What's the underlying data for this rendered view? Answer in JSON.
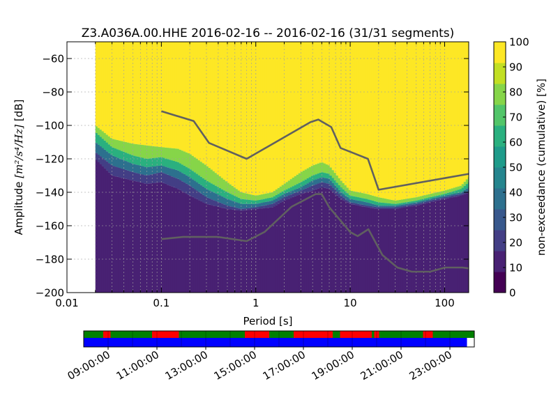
{
  "chart_data": {
    "type": "heatmap",
    "title": "Z3.A036A.00.HHE   2016-02-16 -- 2016-02-16  (31/31 segments)",
    "xlabel": "Period [s]",
    "ylabel_prefix": "Amplitude ",
    "ylabel_units": "[m²/s⁴/Hz]",
    "ylabel_suffix": " [dB]",
    "x_scale": "log",
    "xlim": [
      0.01,
      180
    ],
    "ylim": [
      -200,
      -50
    ],
    "grid": true,
    "x_ticks": [
      {
        "value": 0.01,
        "label": "0.01"
      },
      {
        "value": 0.1,
        "label": "0.1"
      },
      {
        "value": 1,
        "label": "1"
      },
      {
        "value": 10,
        "label": "10"
      },
      {
        "value": 100,
        "label": "100"
      }
    ],
    "y_ticks": [
      {
        "value": -60,
        "label": "−60"
      },
      {
        "value": -80,
        "label": "−80"
      },
      {
        "value": -100,
        "label": "−100"
      },
      {
        "value": -120,
        "label": "−120"
      },
      {
        "value": -140,
        "label": "−140"
      },
      {
        "value": -160,
        "label": "−160"
      },
      {
        "value": -180,
        "label": "−180"
      },
      {
        "value": -200,
        "label": "−200"
      }
    ],
    "data_period_range": [
      0.02,
      180
    ],
    "psd_band": {
      "periods": [
        0.02,
        0.03,
        0.05,
        0.07,
        0.1,
        0.15,
        0.2,
        0.3,
        0.5,
        0.7,
        1,
        1.5,
        2,
        3,
        4,
        5,
        6,
        8,
        10,
        15,
        20,
        30,
        50,
        70,
        100,
        150,
        180
      ],
      "p100": [
        -100,
        -108,
        -111,
        -112,
        -113,
        -114,
        -117,
        -124,
        -134,
        -140,
        -142,
        -140,
        -135,
        -128,
        -124,
        -122,
        -124,
        -133,
        -139,
        -141,
        -143,
        -145,
        -143,
        -141,
        -139,
        -136,
        -131
      ],
      "p90": [
        -104,
        -113,
        -118,
        -120,
        -119,
        -122,
        -126,
        -133,
        -140,
        -144,
        -145,
        -143,
        -139,
        -134,
        -130,
        -128,
        -129,
        -137,
        -142,
        -144,
        -146,
        -147,
        -145,
        -143,
        -141,
        -138,
        -134
      ],
      "p60": [
        -110,
        -118,
        -123,
        -125,
        -124,
        -127,
        -131,
        -138,
        -144,
        -147,
        -147,
        -145,
        -141,
        -137,
        -133,
        -131,
        -132,
        -140,
        -144,
        -146,
        -148,
        -148,
        -146,
        -144,
        -142,
        -140,
        -137
      ],
      "p20": [
        -116,
        -124,
        -128,
        -130,
        -128,
        -132,
        -136,
        -143,
        -148,
        -150,
        -149,
        -147,
        -143,
        -139,
        -136,
        -134,
        -135,
        -142,
        -146,
        -148,
        -149,
        -149,
        -147,
        -145,
        -143,
        -141,
        -139
      ],
      "p8": [
        -120,
        -130,
        -133,
        -135,
        -134,
        -138,
        -142,
        -147,
        -150,
        -151,
        -150,
        -149,
        -145,
        -141,
        -139,
        -137,
        -138,
        -144,
        -147,
        -149,
        -150,
        -150,
        -148,
        -146,
        -144,
        -142,
        -140
      ]
    },
    "nhnm": {
      "x": [
        0.1,
        0.22,
        0.32,
        0.8,
        3.8,
        4.6,
        6.3,
        7.9,
        15.4,
        20,
        180
      ],
      "y": [
        -91.5,
        -97.4,
        -110.5,
        -120,
        -98,
        -96.5,
        -101,
        -113.5,
        -120,
        -138.5,
        -129
      ]
    },
    "nlnm": {
      "x": [
        0.1,
        0.17,
        0.4,
        0.8,
        1.24,
        2.4,
        4.3,
        5,
        6,
        10,
        12,
        15.6,
        21.9,
        31.6,
        45,
        70,
        101,
        154,
        180
      ],
      "y": [
        -168,
        -166.7,
        -166.7,
        -169.2,
        -163.7,
        -148.6,
        -141.1,
        -141.1,
        -149,
        -163.8,
        -166.2,
        -162.1,
        -177.5,
        -185,
        -187.5,
        -187.5,
        -185,
        -185,
        -185.5
      ]
    },
    "colorbar": {
      "label": "non-exceedance (cumulative) [%]",
      "range": [
        0,
        100
      ],
      "ticks": [
        {
          "value": 0,
          "label": "0"
        },
        {
          "value": 10,
          "label": "10"
        },
        {
          "value": 20,
          "label": "20"
        },
        {
          "value": 30,
          "label": "30"
        },
        {
          "value": 40,
          "label": "40"
        },
        {
          "value": 50,
          "label": "50"
        },
        {
          "value": 60,
          "label": "60"
        },
        {
          "value": 70,
          "label": "70"
        },
        {
          "value": 80,
          "label": "80"
        },
        {
          "value": 90,
          "label": "90"
        },
        {
          "value": 100,
          "label": "100"
        }
      ],
      "colors": [
        "#440154",
        "#482173",
        "#433e85",
        "#38588c",
        "#2d708e",
        "#25858e",
        "#1e9b8a",
        "#2ab07f",
        "#52c569",
        "#86d549",
        "#c2df23",
        "#fde725"
      ]
    },
    "timeline": {
      "start_hour": 8,
      "end_hour": 24,
      "tick_labels": [
        {
          "hour": 9,
          "label": "09:00:00"
        },
        {
          "hour": 11,
          "label": "11:00:00"
        },
        {
          "hour": 13,
          "label": "13:00:00"
        },
        {
          "hour": 15,
          "label": "15:00:00"
        },
        {
          "hour": 17,
          "label": "17:00:00"
        },
        {
          "hour": 19,
          "label": "19:00:00"
        },
        {
          "hour": 21,
          "label": "21:00:00"
        },
        {
          "hour": 23,
          "label": "23:00:00"
        }
      ],
      "data_coverage_end_hour": 23.7,
      "colors": {
        "used": "#008000",
        "excluded": "#ff0000",
        "data": "#0000ff"
      },
      "excluded_segments": [
        [
          8.8,
          9.1
        ],
        [
          10.8,
          11.9
        ],
        [
          14.6,
          15.6
        ],
        [
          16.6,
          18.2
        ],
        [
          18.5,
          19.8
        ],
        [
          19.9,
          20.1
        ],
        [
          21.9,
          22.3
        ]
      ]
    }
  }
}
